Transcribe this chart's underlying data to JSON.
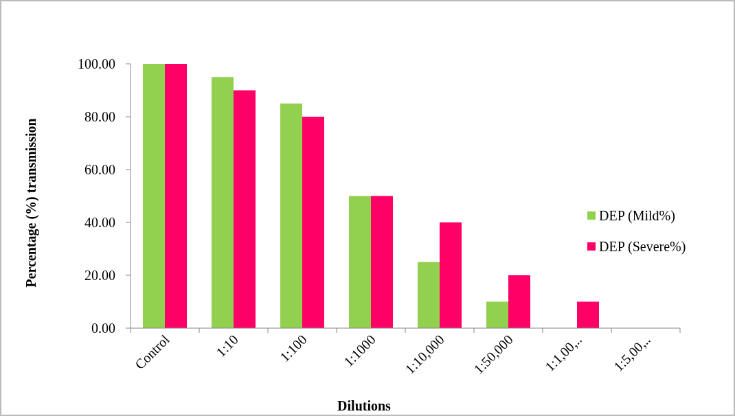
{
  "chart_data": {
    "type": "bar",
    "xlabel": "Dilutions",
    "ylabel": "Percentage (%) transmission",
    "categories": [
      "Control",
      "1:10",
      "1:100",
      "1:1000",
      "1:10,000",
      "1:50,000",
      "1:1,00,..",
      "1:5,00,.."
    ],
    "series": [
      {
        "name": "DEP (Mild%)",
        "color": "#92d050",
        "values": [
          100,
          95,
          85,
          50,
          25,
          10,
          0,
          0
        ]
      },
      {
        "name": "DEP (Severe%)",
        "color": "#ff0066",
        "values": [
          100,
          90,
          80,
          50,
          40,
          20,
          10,
          0
        ]
      }
    ],
    "ylim": [
      0,
      100
    ],
    "yticks": [
      {
        "value": 0,
        "label": "0.00"
      },
      {
        "value": 20,
        "label": "20.00"
      },
      {
        "value": 40,
        "label": "40.00"
      },
      {
        "value": 60,
        "label": "60.00"
      },
      {
        "value": 80,
        "label": "80.00"
      },
      {
        "value": 100,
        "label": "100.00"
      }
    ],
    "grid": false,
    "legend": "right"
  }
}
